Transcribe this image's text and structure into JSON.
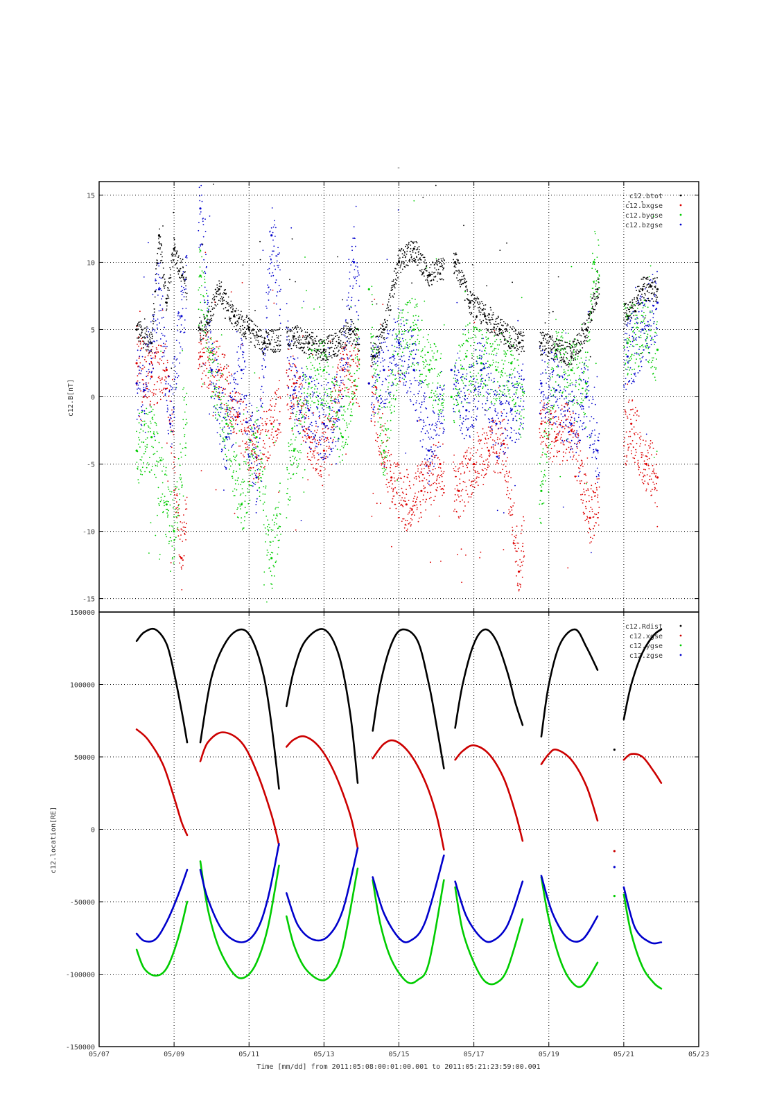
{
  "figure": {
    "top_mark": "-",
    "xlabel": "Time [mm/dd]  from 2011:05:08:00:01:00.001  to  2011:05:21:23:59:00.001",
    "x_tick_labels": [
      "05/07",
      "05/09",
      "05/11",
      "05/13",
      "05/15",
      "05/17",
      "05/19",
      "05/21",
      "05/23"
    ]
  },
  "chart_data": [
    {
      "type": "scatter",
      "ylabel": "c12.B[nT]",
      "x_unit": "day of May 2011",
      "xlim": [
        7,
        23
      ],
      "ylim": [
        -16,
        16
      ],
      "grid": true,
      "legend_position": "top-right",
      "y_tick_labels": [
        "15",
        "10",
        "5",
        "0",
        "-5",
        "-10",
        "-15"
      ],
      "y_ticks": [
        15,
        10,
        5,
        0,
        -5,
        -10,
        -15
      ],
      "series": [
        {
          "name": "c12.btot",
          "color": "#000000",
          "x": [
            8.0,
            8.4,
            8.6,
            8.8,
            9.0,
            9.7,
            9.9,
            10.2,
            10.6,
            11.0,
            11.4,
            12.2,
            12.6,
            13.0,
            13.4,
            13.7,
            14.3,
            14.6,
            15.0,
            15.4,
            15.8,
            16.5,
            16.9,
            17.3,
            17.7,
            18.2,
            18.8,
            19.2,
            19.6,
            20.0,
            20.3,
            21.1,
            21.5,
            21.9
          ],
          "values": [
            5.0,
            4.0,
            12.0,
            7.0,
            11.0,
            5.0,
            5.5,
            8.0,
            6.0,
            5.0,
            4.0,
            4.5,
            4.0,
            3.5,
            4.0,
            5.0,
            3.0,
            5.0,
            10.0,
            11.0,
            9.0,
            10.0,
            7.0,
            6.0,
            5.0,
            4.0,
            4.0,
            3.5,
            3.0,
            5.0,
            8.0,
            6.0,
            8.0,
            8.0
          ]
        },
        {
          "name": "c12.bxgse",
          "color": "#dd0000",
          "x": [
            8.0,
            8.4,
            8.8,
            9.2,
            9.7,
            10.2,
            10.7,
            11.2,
            11.6,
            12.2,
            12.6,
            13.0,
            13.5,
            14.2,
            14.8,
            15.2,
            15.6,
            16.1,
            16.6,
            17.0,
            17.4,
            17.8,
            18.2,
            18.8,
            19.2,
            19.6,
            20.1,
            21.2,
            21.6,
            21.9
          ],
          "values": [
            2.5,
            1.5,
            2.0,
            -12.0,
            3.0,
            2.0,
            -1.5,
            -4.5,
            -2.0,
            1.0,
            -3.0,
            -4.0,
            2.0,
            1.0,
            -6.0,
            -8.0,
            -7.0,
            -5.0,
            -7.0,
            -5.0,
            -4.0,
            -3.5,
            -13.0,
            -2.0,
            -3.0,
            -2.5,
            -9.0,
            -2.0,
            -5.0,
            -6.0
          ]
        },
        {
          "name": "c12.bygse",
          "color": "#00cc00",
          "x": [
            8.0,
            8.4,
            8.8,
            9.0,
            9.7,
            10.0,
            10.4,
            10.8,
            11.2,
            11.6,
            12.2,
            12.6,
            13.0,
            13.5,
            14.2,
            14.6,
            15.0,
            15.4,
            15.8,
            16.4,
            16.8,
            17.2,
            17.6,
            18.0,
            18.8,
            19.2,
            19.6,
            20.0,
            20.2,
            21.1,
            21.5,
            21.9
          ],
          "values": [
            -4.0,
            -3.0,
            -8.0,
            -10.0,
            9.0,
            2.0,
            -2.0,
            -8.0,
            -3.0,
            -12.0,
            -4.0,
            1.0,
            2.0,
            -3.0,
            8.0,
            -4.0,
            4.0,
            5.0,
            2.0,
            0.0,
            3.0,
            2.5,
            2.0,
            2.5,
            -7.0,
            3.0,
            2.0,
            1.0,
            10.0,
            4.0,
            5.0,
            3.5
          ]
        },
        {
          "name": "c12.bzgse",
          "color": "#0000cc",
          "x": [
            8.0,
            8.2,
            8.6,
            8.9,
            9.2,
            9.7,
            10.0,
            10.4,
            10.8,
            11.2,
            11.6,
            12.2,
            12.6,
            13.0,
            13.4,
            13.8,
            14.2,
            14.6,
            15.0,
            15.4,
            15.8,
            16.4,
            16.8,
            17.2,
            17.6,
            18.0,
            18.8,
            19.2,
            19.6,
            20.0,
            20.3,
            21.1,
            21.5,
            21.9
          ],
          "values": [
            1.0,
            0.5,
            8.0,
            -2.0,
            6.0,
            14.0,
            2.0,
            -3.0,
            2.0,
            -6.0,
            12.0,
            0.5,
            -1.0,
            -2.0,
            -1.0,
            10.0,
            1.0,
            2.0,
            4.0,
            2.0,
            -4.0,
            2.0,
            -1.0,
            2.0,
            -2.0,
            -1.0,
            1.0,
            0.5,
            -2.0,
            0.0,
            -4.0,
            3.0,
            5.0,
            7.0
          ]
        }
      ]
    },
    {
      "type": "line",
      "ylabel": "c12.location[RE]",
      "x_unit": "day of May 2011",
      "xlim": [
        7,
        23
      ],
      "ylim": [
        -150000,
        150000
      ],
      "grid": true,
      "legend_position": "top-right",
      "y_tick_labels": [
        "150000",
        "100000",
        "50000",
        "0",
        "-50000",
        "-100000",
        "-150000"
      ],
      "y_ticks": [
        150000,
        100000,
        50000,
        0,
        -50000,
        -100000,
        -150000
      ],
      "series": [
        {
          "name": "c12.Rdist",
          "color": "#000000",
          "segments": [
            {
              "x": [
                8.0,
                8.2,
                8.5,
                8.8,
                9.0,
                9.2,
                9.35
              ],
              "values": [
                130000,
                136000,
                138000,
                128000,
                108000,
                82000,
                60000
              ]
            },
            {
              "x": [
                9.7,
                10.0,
                10.4,
                10.8,
                11.1,
                11.4,
                11.6,
                11.8
              ],
              "values": [
                60000,
                105000,
                130000,
                138000,
                130000,
                105000,
                72000,
                28000
              ]
            },
            {
              "x": [
                12.0,
                12.2,
                12.5,
                13.0,
                13.4,
                13.7,
                13.9
              ],
              "values": [
                85000,
                110000,
                130000,
                138000,
                120000,
                80000,
                32000
              ]
            },
            {
              "x": [
                14.3,
                14.5,
                14.8,
                15.1,
                15.5,
                15.8,
                16.0,
                16.2
              ],
              "values": [
                68000,
                100000,
                128000,
                138000,
                130000,
                100000,
                72000,
                42000
              ]
            },
            {
              "x": [
                16.5,
                16.7,
                17.0,
                17.3,
                17.6,
                17.9,
                18.1,
                18.3
              ],
              "values": [
                70000,
                100000,
                128000,
                138000,
                130000,
                108000,
                88000,
                72000
              ]
            },
            {
              "x": [
                18.8,
                19.0,
                19.3,
                19.7,
                20.0,
                20.3
              ],
              "values": [
                64000,
                100000,
                128000,
                138000,
                126000,
                110000
              ]
            },
            {
              "x": [
                21.0,
                21.2,
                21.5,
                21.8,
                22.0
              ],
              "values": [
                76000,
                100000,
                122000,
                134000,
                138000
              ]
            }
          ]
        },
        {
          "name": "c12.xgse",
          "color": "#cc0000",
          "segments": [
            {
              "x": [
                8.0,
                8.3,
                8.7,
                9.0,
                9.2,
                9.35
              ],
              "values": [
                69000,
                62000,
                45000,
                22000,
                5000,
                -4000
              ]
            },
            {
              "x": [
                9.7,
                9.9,
                10.3,
                10.8,
                11.2,
                11.6,
                11.8
              ],
              "values": [
                47000,
                60000,
                67000,
                60000,
                40000,
                10000,
                -11000
              ]
            },
            {
              "x": [
                12.0,
                12.2,
                12.5,
                12.9,
                13.3,
                13.7,
                13.9
              ],
              "values": [
                57000,
                62000,
                64000,
                56000,
                38000,
                10000,
                -13000
              ]
            },
            {
              "x": [
                14.3,
                14.6,
                14.9,
                15.3,
                15.7,
                16.0,
                16.2
              ],
              "values": [
                49000,
                59000,
                61000,
                52000,
                33000,
                10000,
                -14000
              ]
            },
            {
              "x": [
                16.5,
                16.7,
                17.0,
                17.4,
                17.8,
                18.1,
                18.3
              ],
              "values": [
                48000,
                54000,
                58000,
                52000,
                35000,
                12000,
                -8000
              ]
            },
            {
              "x": [
                18.8,
                19.0,
                19.2,
                19.6,
                20.0,
                20.3
              ],
              "values": [
                45000,
                52000,
                55000,
                48000,
                30000,
                6000
              ]
            },
            {
              "x": [
                21.0,
                21.2,
                21.5,
                21.8,
                22.0
              ],
              "values": [
                48000,
                52000,
                50000,
                40000,
                32000
              ]
            }
          ]
        },
        {
          "name": "c12.ygse",
          "color": "#00cc00",
          "segments": [
            {
              "x": [
                8.0,
                8.2,
                8.5,
                8.8,
                9.1,
                9.35
              ],
              "values": [
                -83000,
                -96000,
                -101000,
                -96000,
                -76000,
                -50000
              ]
            },
            {
              "x": [
                9.7,
                9.9,
                10.2,
                10.6,
                10.9,
                11.2,
                11.5,
                11.8
              ],
              "values": [
                -22000,
                -55000,
                -82000,
                -100000,
                -102000,
                -92000,
                -68000,
                -25000
              ]
            },
            {
              "x": [
                12.0,
                12.2,
                12.5,
                12.9,
                13.2,
                13.5,
                13.9
              ],
              "values": [
                -60000,
                -80000,
                -96000,
                -104000,
                -100000,
                -82000,
                -27000
              ]
            },
            {
              "x": [
                14.3,
                14.5,
                14.8,
                15.2,
                15.5,
                15.8,
                16.2
              ],
              "values": [
                -35000,
                -65000,
                -90000,
                -105000,
                -104000,
                -92000,
                -35000
              ]
            },
            {
              "x": [
                16.5,
                16.7,
                17.0,
                17.3,
                17.6,
                17.9,
                18.3
              ],
              "values": [
                -40000,
                -70000,
                -92000,
                -105000,
                -106000,
                -96000,
                -62000
              ]
            },
            {
              "x": [
                18.8,
                19.0,
                19.3,
                19.6,
                19.9,
                20.3
              ],
              "values": [
                -33000,
                -62000,
                -90000,
                -105000,
                -108000,
                -92000
              ]
            },
            {
              "x": [
                21.0,
                21.2,
                21.5,
                21.8,
                22.0
              ],
              "values": [
                -45000,
                -72000,
                -95000,
                -106000,
                -110000
              ]
            }
          ]
        },
        {
          "name": "c12.zgse",
          "color": "#0000cc",
          "segments": [
            {
              "x": [
                8.0,
                8.2,
                8.5,
                8.8,
                9.1,
                9.35
              ],
              "values": [
                -72000,
                -77000,
                -76000,
                -64000,
                -46000,
                -28000
              ]
            },
            {
              "x": [
                9.7,
                9.9,
                10.3,
                10.8,
                11.2,
                11.5,
                11.8
              ],
              "values": [
                -28000,
                -48000,
                -70000,
                -78000,
                -70000,
                -48000,
                -10000
              ]
            },
            {
              "x": [
                12.0,
                12.3,
                12.7,
                13.1,
                13.5,
                13.9
              ],
              "values": [
                -44000,
                -66000,
                -76000,
                -74000,
                -56000,
                -13000
              ]
            },
            {
              "x": [
                14.3,
                14.6,
                15.0,
                15.3,
                15.7,
                16.2
              ],
              "values": [
                -33000,
                -58000,
                -75000,
                -77000,
                -64000,
                -18000
              ]
            },
            {
              "x": [
                16.5,
                16.8,
                17.2,
                17.5,
                17.9,
                18.3
              ],
              "values": [
                -36000,
                -60000,
                -75000,
                -77000,
                -66000,
                -36000
              ]
            },
            {
              "x": [
                18.8,
                19.1,
                19.5,
                19.9,
                20.3
              ],
              "values": [
                -32000,
                -58000,
                -75000,
                -76000,
                -60000
              ]
            },
            {
              "x": [
                21.0,
                21.3,
                21.7,
                22.0
              ],
              "values": [
                -40000,
                -68000,
                -78000,
                -78000
              ]
            }
          ]
        }
      ],
      "isolated_points": [
        {
          "series": "c12.xgse",
          "x": [
            20.75
          ],
          "values": [
            -15000
          ]
        },
        {
          "series": "c12.zgse",
          "x": [
            20.75
          ],
          "values": [
            -26000
          ]
        },
        {
          "series": "c12.ygse",
          "x": [
            20.75
          ],
          "values": [
            -46000
          ]
        },
        {
          "series": "c12.Rdist",
          "x": [
            20.75
          ],
          "values": [
            55000
          ]
        }
      ]
    }
  ]
}
